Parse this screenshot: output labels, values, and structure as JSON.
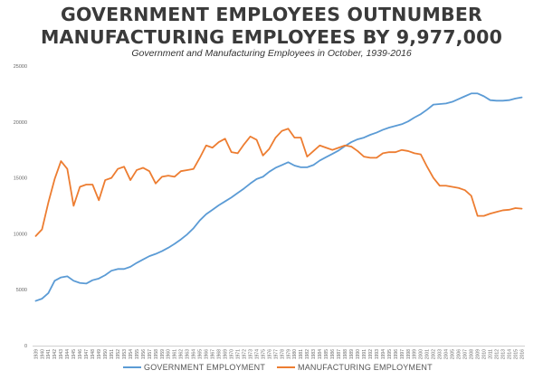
{
  "chart_data": {
    "type": "line",
    "title_line1": "GOVERNMENT EMPLOYEES OUTNUMBER",
    "title_line2": "MANUFACTURING EMPLOYEES BY 9,977,000",
    "subtitle": "Government and Manufacturing Employees in October, 1939-2016",
    "ylim": [
      0,
      25000
    ],
    "yticks": [
      0,
      5000,
      10000,
      15000,
      20000,
      25000
    ],
    "x": [
      1939,
      1940,
      1941,
      1942,
      1943,
      1944,
      1945,
      1946,
      1947,
      1948,
      1949,
      1950,
      1951,
      1952,
      1953,
      1954,
      1955,
      1956,
      1957,
      1958,
      1959,
      1960,
      1961,
      1962,
      1963,
      1964,
      1965,
      1966,
      1967,
      1968,
      1969,
      1970,
      1971,
      1972,
      1973,
      1974,
      1975,
      1976,
      1977,
      1978,
      1979,
      1980,
      1981,
      1982,
      1983,
      1984,
      1985,
      1986,
      1987,
      1988,
      1989,
      1990,
      1991,
      1992,
      1993,
      1994,
      1995,
      1996,
      1997,
      1998,
      1999,
      2000,
      2001,
      2002,
      2003,
      2004,
      2005,
      2006,
      2007,
      2008,
      2009,
      2010,
      2011,
      2012,
      2013,
      2014,
      2015,
      2016
    ],
    "series": [
      {
        "name": "GOVERNMENT EMPLOYMENT",
        "color": "#5b9bd5",
        "values": [
          4000,
          4200,
          4700,
          5800,
          6100,
          6200,
          5800,
          5600,
          5550,
          5850,
          6000,
          6300,
          6700,
          6850,
          6850,
          7050,
          7400,
          7700,
          8000,
          8200,
          8450,
          8750,
          9100,
          9500,
          9950,
          10500,
          11200,
          11750,
          12150,
          12550,
          12900,
          13250,
          13650,
          14050,
          14500,
          14900,
          15100,
          15550,
          15900,
          16150,
          16400,
          16100,
          15950,
          15950,
          16150,
          16550,
          16850,
          17150,
          17450,
          17850,
          18200,
          18450,
          18600,
          18850,
          19050,
          19300,
          19500,
          19650,
          19800,
          20050,
          20400,
          20700,
          21100,
          21550,
          21600,
          21650,
          21800,
          22050,
          22300,
          22550,
          22550,
          22300,
          21950,
          21900,
          21900,
          21950,
          22100,
          22200
        ]
      },
      {
        "name": "MANUFACTURING EMPLOYMENT",
        "color": "#ed7d31",
        "values": [
          9800,
          10400,
          12800,
          14900,
          16500,
          15800,
          12500,
          14200,
          14400,
          14400,
          13000,
          14800,
          15000,
          15800,
          16000,
          14800,
          15700,
          15900,
          15600,
          14500,
          15100,
          15200,
          15100,
          15600,
          15700,
          15800,
          16800,
          17900,
          17700,
          18200,
          18500,
          17300,
          17200,
          18000,
          18700,
          18400,
          17000,
          17600,
          18600,
          19200,
          19400,
          18600,
          18600,
          16900,
          17400,
          17900,
          17700,
          17500,
          17700,
          17900,
          17800,
          17400,
          16900,
          16800,
          16800,
          17200,
          17300,
          17300,
          17500,
          17400,
          17200,
          17100,
          16000,
          15000,
          14300,
          14300,
          14200,
          14100,
          13900,
          13400,
          11600,
          11600,
          11800,
          11950,
          12100,
          12150,
          12300,
          12250
        ]
      }
    ]
  }
}
